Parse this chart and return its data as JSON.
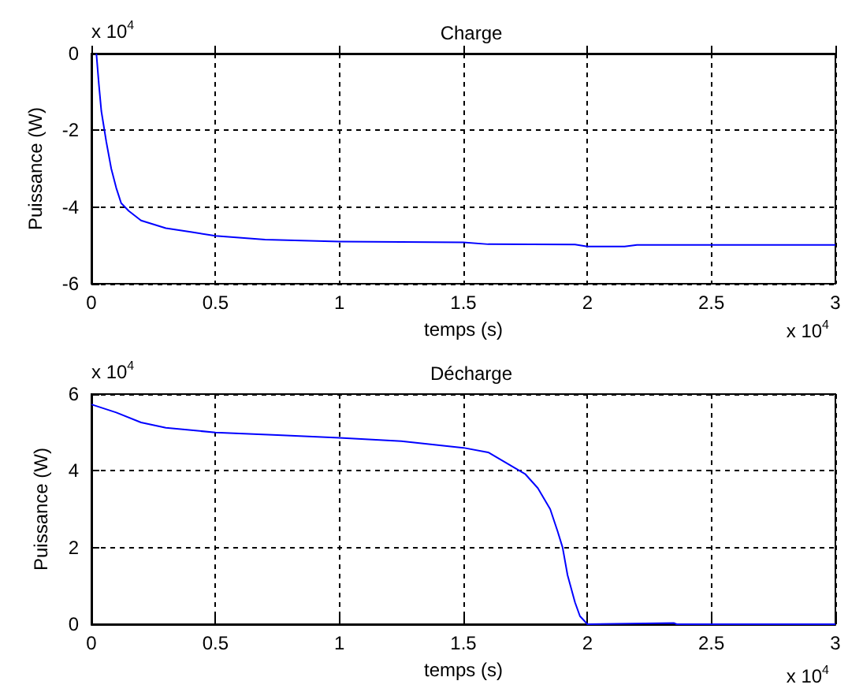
{
  "chart_data": [
    {
      "type": "line",
      "title": "Charge",
      "xlabel": "temps (s)",
      "ylabel": "Puissance (W)",
      "annotations": [
        "x 10$^{4}$",
        "x 10$^{4}$"
      ],
      "color": "#0000ff",
      "grid": true,
      "xlim": [
        0,
        3
      ],
      "ylim": [
        -6,
        0
      ],
      "xticks": [
        0,
        0.5,
        1,
        1.5,
        2,
        2.5,
        3
      ],
      "yticks": [
        -6,
        -4,
        -2,
        0
      ],
      "x": [
        0.02,
        0.03,
        0.04,
        0.06,
        0.08,
        0.1,
        0.12,
        0.15,
        0.2,
        0.3,
        0.4,
        0.5,
        0.7,
        1,
        1.5,
        1.6,
        1.95,
        2,
        2.15,
        2.2,
        3
      ],
      "values": [
        0,
        -0.8,
        -1.5,
        -2.3,
        -3,
        -3.5,
        -3.9,
        -4.1,
        -4.35,
        -4.55,
        -4.65,
        -4.75,
        -4.85,
        -4.9,
        -4.92,
        -4.97,
        -4.98,
        -5.03,
        -5.03,
        -4.99,
        -4.99
      ]
    },
    {
      "type": "line",
      "title": "Décharge",
      "xlabel": "temps (s)",
      "ylabel": "Puissance (W)",
      "annotations": [
        "x 10$^{4}$",
        "x 10$^{4}$"
      ],
      "color": "#0000ff",
      "grid": true,
      "xlim": [
        0,
        3
      ],
      "ylim": [
        0,
        6
      ],
      "xticks": [
        0,
        0.5,
        1,
        1.5,
        2,
        2.5,
        3
      ],
      "yticks": [
        0,
        2,
        4,
        6
      ],
      "x": [
        0,
        0.1,
        0.2,
        0.3,
        0.5,
        0.75,
        1,
        1.25,
        1.5,
        1.6,
        1.7,
        1.75,
        1.8,
        1.85,
        1.88,
        1.9,
        1.92,
        1.95,
        1.97,
        2,
        2.35,
        2.36,
        3
      ],
      "values": [
        5.73,
        5.52,
        5.26,
        5.12,
        5.0,
        4.93,
        4.86,
        4.77,
        4.6,
        4.48,
        4.1,
        3.91,
        3.55,
        3.0,
        2.42,
        2.0,
        1.28,
        0.57,
        0.21,
        0,
        0.03,
        0,
        0
      ]
    }
  ]
}
